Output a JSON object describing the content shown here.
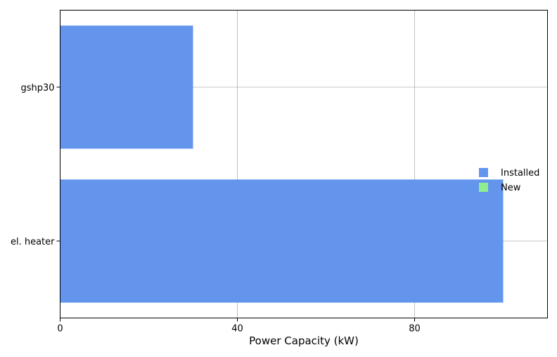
{
  "chart_data": {
    "type": "bar",
    "orientation": "horizontal",
    "categories": [
      "gshp30",
      "el. heater"
    ],
    "series": [
      {
        "name": "Installed",
        "values": [
          30,
          100
        ],
        "color": "#6495ED"
      },
      {
        "name": "New",
        "values": [
          0,
          0
        ],
        "color": "#90EE90"
      }
    ],
    "xlabel": "Power Capacity (kW)",
    "ylabel": "",
    "title": "",
    "xlim": [
      0,
      110
    ],
    "xticks": [
      0,
      40,
      80
    ],
    "xtick_labels": [
      "0",
      "40",
      "80"
    ],
    "grid": true,
    "legend_position": "right"
  }
}
